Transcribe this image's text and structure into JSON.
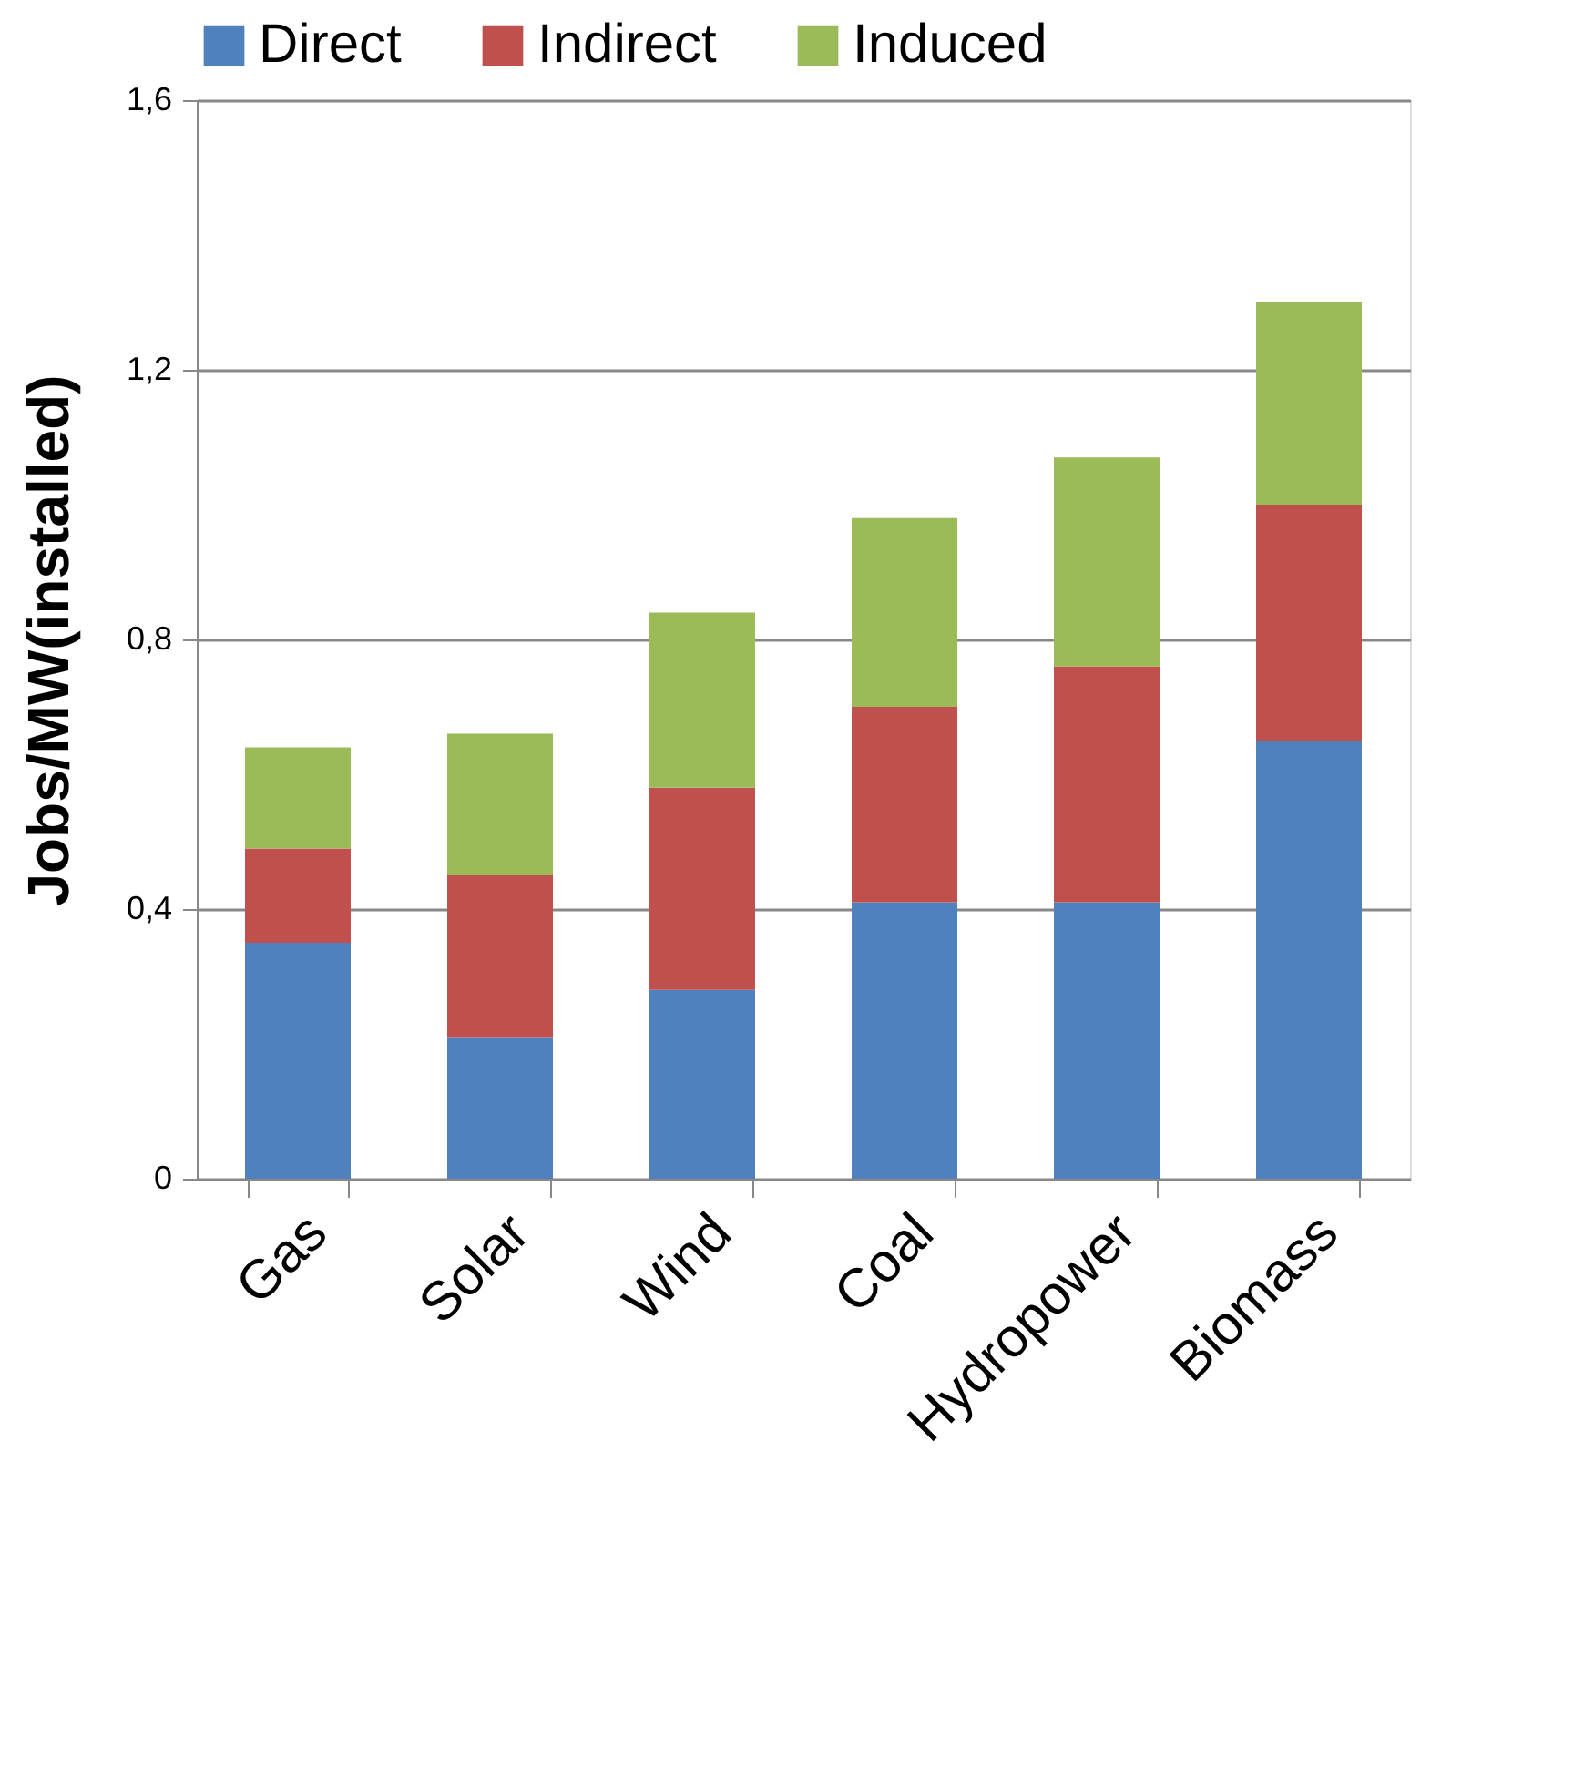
{
  "chart_data": {
    "type": "bar",
    "stacked": true,
    "ylabel": "Jobs/MW(installed)",
    "categories": [
      "Gas",
      "Solar",
      "Wind",
      "Coal",
      "Hydropower",
      "Biomass"
    ],
    "series": [
      {
        "name": "Direct",
        "color": "#4f81bd",
        "values": [
          0.35,
          0.21,
          0.28,
          0.41,
          0.41,
          0.65
        ]
      },
      {
        "name": "Indirect",
        "color": "#c0504d",
        "values": [
          0.14,
          0.24,
          0.3,
          0.29,
          0.35,
          0.35
        ]
      },
      {
        "name": "Induced",
        "color": "#9bbb59",
        "values": [
          0.15,
          0.21,
          0.26,
          0.28,
          0.31,
          0.3
        ]
      }
    ],
    "ylim": [
      0,
      1.6
    ],
    "yticks": [
      0,
      {
        "value": 0.4,
        "label": "0,4"
      },
      {
        "value": 0.8,
        "label": "0,8"
      },
      {
        "value": 1.2,
        "label": "1,2"
      },
      {
        "value": 1.6,
        "label": "1,6"
      }
    ],
    "grid": "y",
    "legend": "top"
  }
}
